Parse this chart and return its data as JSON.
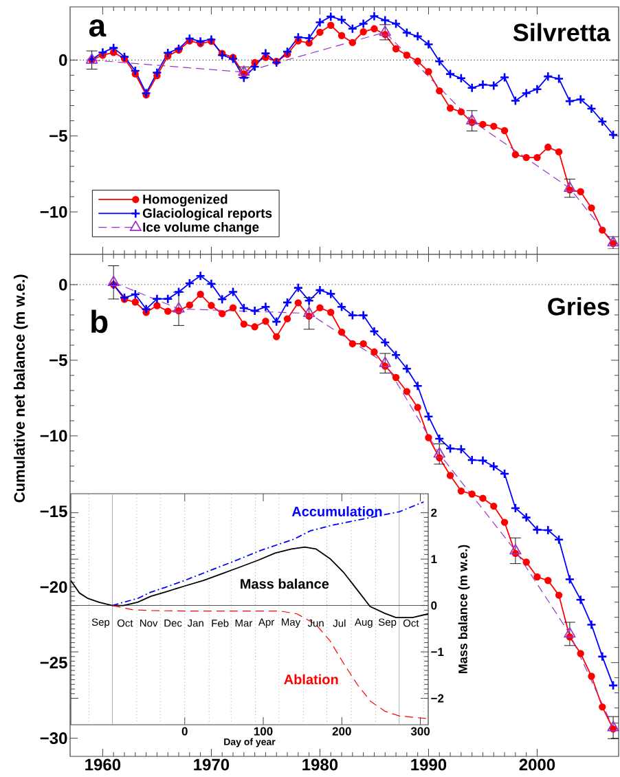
{
  "chart_data": [
    {
      "type": "line",
      "title": "Silvretta",
      "annotations": [
        "a"
      ],
      "xlim": [
        1957,
        2007.5
      ],
      "ylim": [
        -12.8,
        3.5
      ],
      "xticks": [
        1960,
        1970,
        1980,
        1990,
        2000
      ],
      "yticks": [
        {
          "value": -10,
          "label": "−10"
        },
        {
          "value": -5,
          "label": "−5"
        },
        0
      ],
      "tick_labels": "y",
      "legend": "bottom left",
      "ref_lines": [
        {
          "axis": "y",
          "value": 0,
          "color": "#000000",
          "line_style": "dotted"
        }
      ],
      "series": [
        {
          "name": "Homogenized",
          "color": "#ff0000",
          "marker": "circle",
          "line_style": "solid",
          "x": [
            1959,
            1960,
            1961,
            1962,
            1963,
            1964,
            1965,
            1966,
            1967,
            1968,
            1969,
            1970,
            1971,
            1972,
            1973,
            1974,
            1975,
            1976,
            1977,
            1978,
            1979,
            1980,
            1981,
            1982,
            1983,
            1984,
            1985,
            1986,
            1987,
            1988,
            1989,
            1990,
            1991,
            1992,
            1993,
            1994,
            1995,
            1996,
            1997,
            1998,
            1999,
            2000,
            2001,
            2002,
            2003,
            2004,
            2005,
            2006,
            2007
          ],
          "values": [
            0,
            0.32,
            0.5,
            0.1,
            -0.92,
            -2.3,
            -1.03,
            0.26,
            0.65,
            1.26,
            1.08,
            1.23,
            0.44,
            0.17,
            -0.92,
            -0.17,
            0.17,
            -0.09,
            0.38,
            1.26,
            1.12,
            1.83,
            2.29,
            1.61,
            1.15,
            1.86,
            2.06,
            1.68,
            0.74,
            0.32,
            -0.08,
            -0.76,
            -2.03,
            -3.17,
            -3.41,
            -4.11,
            -4.24,
            -4.36,
            -4.65,
            -6.23,
            -6.42,
            -6.42,
            -5.74,
            -6.05,
            -8.56,
            -8.67,
            -9.74,
            -11.2,
            -12.08
          ]
        },
        {
          "name": "Glaciological reports",
          "color": "#0000ff",
          "marker": "cross",
          "line_style": "solid",
          "x": [
            1959,
            1960,
            1961,
            1962,
            1963,
            1964,
            1965,
            1966,
            1967,
            1968,
            1969,
            1970,
            1971,
            1972,
            1973,
            1974,
            1975,
            1976,
            1977,
            1978,
            1979,
            1980,
            1981,
            1982,
            1983,
            1984,
            1985,
            1986,
            1987,
            1988,
            1989,
            1990,
            1991,
            1992,
            1993,
            1994,
            1995,
            1996,
            1997,
            1998,
            1999,
            2000,
            2001,
            2002,
            2003,
            2004,
            2005,
            2006,
            2007
          ],
          "values": [
            0.05,
            0.5,
            0.8,
            0.21,
            -0.71,
            -2.18,
            -0.83,
            0.47,
            0.74,
            1.41,
            1.23,
            1.35,
            0.32,
            0.08,
            -1.17,
            -0.44,
            0.44,
            -0.17,
            0.55,
            1.5,
            1.44,
            2.48,
            2.86,
            2.65,
            2.06,
            2.39,
            2.89,
            2.62,
            2.39,
            1.8,
            1.56,
            1.03,
            -0.09,
            -0.92,
            -1.2,
            -1.83,
            -1.62,
            -1.68,
            -1.14,
            -2.68,
            -2.18,
            -1.92,
            -1.08,
            -1.23,
            -2.71,
            -2.59,
            -3.2,
            -4.05,
            -4.92
          ]
        },
        {
          "name": "Ice volume change",
          "color": "#9933cc",
          "marker": "triangle",
          "line_style": "dashed",
          "x": [
            1959,
            1973,
            1986,
            1994,
            2003,
            2007
          ],
          "values": [
            0,
            -0.8,
            1.83,
            -4.0,
            -8.44,
            -12.03
          ],
          "errors": [
            0.6,
            0.35,
            0.5,
            0.67,
            0.6,
            0.4
          ]
        }
      ]
    },
    {
      "type": "line",
      "title": "Gries",
      "annotations": [
        "b"
      ],
      "ylabel": "Cumulative net balance (m w.e.)",
      "xlim": [
        1957,
        2007.5
      ],
      "ylim": [
        -31.2,
        2
      ],
      "xticks": [
        1960,
        1970,
        1980,
        1990,
        2000
      ],
      "yticks": [
        {
          "value": -30,
          "label": "−30"
        },
        {
          "value": -25,
          "label": "−25"
        },
        {
          "value": -20,
          "label": "−20"
        },
        {
          "value": -15,
          "label": "−15"
        },
        {
          "value": -10,
          "label": "−10"
        },
        {
          "value": -5,
          "label": "−5"
        },
        0
      ],
      "ref_lines": [
        {
          "axis": "y",
          "value": 0,
          "color": "#000000",
          "line_style": "dotted"
        }
      ],
      "series": [
        {
          "color": "#ff0000",
          "marker": "circle",
          "line_style": "solid",
          "x": [
            1961,
            1962,
            1963,
            1964,
            1965,
            1966,
            1967,
            1968,
            1969,
            1970,
            1971,
            1972,
            1973,
            1974,
            1975,
            1976,
            1977,
            1978,
            1979,
            1980,
            1981,
            1982,
            1983,
            1984,
            1985,
            1986,
            1987,
            1988,
            1989,
            1990,
            1991,
            1992,
            1993,
            1994,
            1995,
            1996,
            1997,
            1998,
            1999,
            2000,
            2001,
            2002,
            2003,
            2004,
            2005,
            2006,
            2007
          ],
          "values": [
            0,
            -0.97,
            -1.15,
            -1.83,
            -1.39,
            -1.76,
            -1.73,
            -1.35,
            -0.64,
            -1.38,
            -1.92,
            -1.53,
            -2.61,
            -2.79,
            -2.42,
            -3.44,
            -2.26,
            -1.2,
            -2.09,
            -1.53,
            -1.83,
            -3.14,
            -3.91,
            -3.91,
            -4.45,
            -5.39,
            -6.14,
            -7.07,
            -8.12,
            -10.12,
            -11.45,
            -12.62,
            -13.65,
            -13.85,
            -14.13,
            -14.65,
            -15.72,
            -17.78,
            -18.35,
            -19.33,
            -19.57,
            -20.54,
            -23.3,
            -24.4,
            -25.9,
            -27.93,
            -29.39
          ]
        },
        {
          "color": "#0000ff",
          "marker": "cross",
          "line_style": "solid",
          "x": [
            1961,
            1962,
            1963,
            1964,
            1965,
            1966,
            1967,
            1968,
            1969,
            1970,
            1971,
            1972,
            1973,
            1974,
            1975,
            1976,
            1977,
            1978,
            1979,
            1980,
            1981,
            1982,
            1983,
            1984,
            1985,
            1986,
            1987,
            1988,
            1989,
            1990,
            1991,
            1992,
            1993,
            1994,
            1995,
            1996,
            1997,
            1998,
            1999,
            2000,
            2001,
            2002,
            2003,
            2004,
            2005,
            2006,
            2007
          ],
          "values": [
            0,
            -0.86,
            -0.64,
            -1.62,
            -0.94,
            -0.94,
            -0.48,
            0.09,
            0.58,
            0.05,
            -0.97,
            -0.48,
            -1.55,
            -1.73,
            -1.47,
            -2.45,
            -1.18,
            -0.21,
            -1.06,
            -0.36,
            -0.61,
            -1.47,
            -2.03,
            -2.03,
            -3.09,
            -3.82,
            -4.65,
            -5.56,
            -6.7,
            -8.72,
            -10.19,
            -10.84,
            -10.88,
            -11.6,
            -11.63,
            -12.02,
            -12.51,
            -14.78,
            -15.4,
            -16.21,
            -16.24,
            -16.86,
            -19.49,
            -20.84,
            -22.49,
            -24.6,
            -26.51
          ]
        },
        {
          "color": "#9933cc",
          "marker": "triangle",
          "line_style": "dashed",
          "x": [
            1961,
            1967,
            1979,
            1986,
            1991,
            1998,
            2003,
            2007
          ],
          "values": [
            0.15,
            -1.6,
            -1.9,
            -5.2,
            -11.2,
            -17.6,
            -23.1,
            -29.3
          ],
          "errors": [
            1.1,
            1.1,
            1.05,
            0.65,
            0.67,
            0.85,
            0.77,
            0.73
          ]
        }
      ]
    },
    {
      "type": "line",
      "xlabel": "Day of year",
      "y2label": "Mass balance (m w.e.)",
      "xlim": [
        -145,
        310
      ],
      "y2lim": [
        -2.57,
        2.41
      ],
      "xticks": [
        0,
        100,
        200,
        300
      ],
      "y2ticks": [
        {
          "value": -2,
          "label": "−2"
        },
        {
          "value": -1,
          "label": "−1"
        },
        0,
        1,
        2
      ],
      "ref_lines": [
        {
          "axis": "x",
          "value": -122,
          "color": "#aaaaaa",
          "line_style": "dotted"
        },
        {
          "axis": "x",
          "value": -92,
          "color": "#aaaaaa",
          "line_style": "solid"
        },
        {
          "axis": "x",
          "value": -61,
          "color": "#aaaaaa",
          "line_style": "dotted"
        },
        {
          "axis": "x",
          "value": -31,
          "color": "#aaaaaa",
          "line_style": "dotted"
        },
        {
          "axis": "x",
          "value": 0,
          "color": "#aaaaaa",
          "line_style": "dotted"
        },
        {
          "axis": "x",
          "value": 31,
          "color": "#aaaaaa",
          "line_style": "dotted"
        },
        {
          "axis": "x",
          "value": 59,
          "color": "#aaaaaa",
          "line_style": "dotted"
        },
        {
          "axis": "x",
          "value": 90,
          "color": "#aaaaaa",
          "line_style": "dotted"
        },
        {
          "axis": "x",
          "value": 120,
          "color": "#aaaaaa",
          "line_style": "dotted"
        },
        {
          "axis": "x",
          "value": 151,
          "color": "#aaaaaa",
          "line_style": "dotted"
        },
        {
          "axis": "x",
          "value": 181,
          "color": "#aaaaaa",
          "line_style": "dotted"
        },
        {
          "axis": "x",
          "value": 212,
          "color": "#aaaaaa",
          "line_style": "dotted"
        },
        {
          "axis": "x",
          "value": 243,
          "color": "#aaaaaa",
          "line_style": "dotted"
        },
        {
          "axis": "x",
          "value": 273,
          "color": "#aaaaaa",
          "line_style": "solid"
        },
        {
          "axis": "x",
          "value": 304,
          "color": "#aaaaaa",
          "line_style": "dotted"
        },
        {
          "axis": "y2",
          "value": 0,
          "color": "#444444",
          "line_style": "solid"
        }
      ],
      "annotations": [
        "Sep",
        "Oct",
        "Nov",
        "Dec",
        "Jan",
        "Feb",
        "Mar",
        "Apr",
        "May",
        "Jun",
        "Jul",
        "Aug",
        "Sep",
        "Oct"
      ],
      "series": [
        {
          "name": "Mass balance",
          "color": "#000000",
          "marker": "none",
          "line_style": "solid",
          "axis": "y2",
          "x": [
            -145,
            -134,
            -123,
            -109,
            -92,
            -78,
            -60,
            -43,
            -25,
            0,
            24,
            45,
            69,
            94,
            115,
            136,
            153,
            167,
            185,
            202,
            220,
            236,
            255,
            269,
            290,
            310
          ],
          "values": [
            0.54,
            0.27,
            0.15,
            0.07,
            0,
            0,
            0.07,
            0.2,
            0.29,
            0.42,
            0.54,
            0.67,
            0.82,
            0.98,
            1.13,
            1.22,
            1.26,
            1.22,
            1.01,
            0.72,
            0.33,
            -0.02,
            -0.17,
            -0.26,
            -0.26,
            -0.18
          ]
        },
        {
          "name": "Accumulation",
          "color": "#0000ff",
          "marker": "none",
          "line_style": "dashdot",
          "axis": "y2",
          "x": [
            -92,
            -78,
            -60,
            -43,
            -25,
            0,
            27,
            62,
            97,
            139,
            160,
            185,
            220,
            255,
            273,
            304
          ],
          "values": [
            0,
            0.07,
            0.15,
            0.29,
            0.39,
            0.54,
            0.72,
            0.95,
            1.19,
            1.43,
            1.61,
            1.72,
            1.84,
            1.96,
            2.02,
            2.23
          ]
        },
        {
          "name": "Ablation",
          "color": "#ff0000",
          "marker": "none",
          "line_style": "dashed",
          "axis": "y2",
          "x": [
            -92,
            -67,
            -43,
            10,
            80,
            122,
            143,
            167,
            185,
            202,
            220,
            237,
            255,
            273,
            310
          ],
          "values": [
            0,
            -0.09,
            -0.11,
            -0.12,
            -0.12,
            -0.12,
            -0.18,
            -0.41,
            -0.76,
            -1.24,
            -1.71,
            -2.07,
            -2.28,
            -2.38,
            -2.44
          ]
        }
      ]
    }
  ]
}
